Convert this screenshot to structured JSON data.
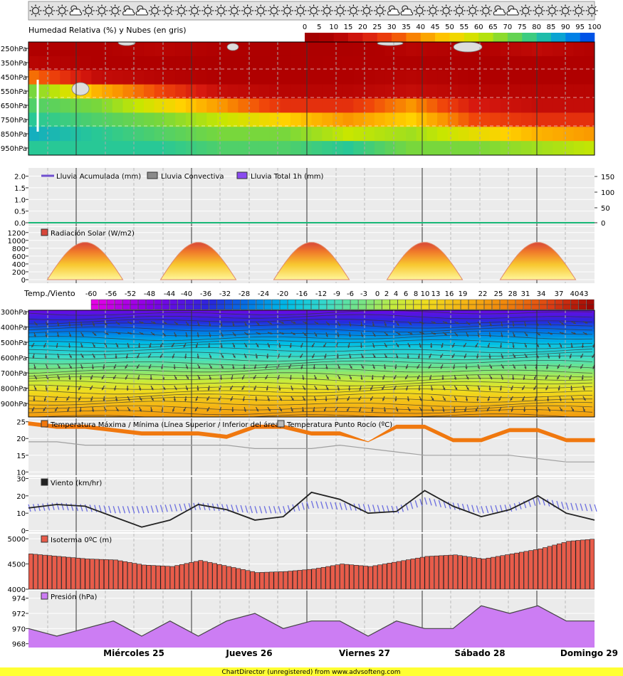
{
  "weather_icons": [
    "sun",
    "sun",
    "sun",
    "cloud-sun",
    "sun",
    "sun",
    "sun",
    "cloud-sun",
    "cloud-sun",
    "sun",
    "sun",
    "sun",
    "sun",
    "sun",
    "sun",
    "sun",
    "sun",
    "sun",
    "sun",
    "sun",
    "sun",
    "sun",
    "sun",
    "sun",
    "sun",
    "sun",
    "sun",
    "cloud-sun",
    "cloud-sun",
    "sun",
    "sun",
    "sun",
    "sun",
    "sun",
    "sun",
    "cloud-sun",
    "cloud-sun",
    "sun",
    "sun",
    "sun",
    "sun",
    "sun",
    "sun"
  ],
  "colors": {
    "axis_bg": "#ebebeb",
    "radiation_fill": "#f3a52a",
    "isotherm_bar": "#e85c4a",
    "pressure_fill": "#cc7df3",
    "wind_line": "#222222",
    "gust_band": "#6b6ee0",
    "dewpoint_line": "#a0a0a0",
    "tmax_band": "#f0780f",
    "rain_line": "#19b878"
  },
  "time_axis": {
    "days": [
      "Miércoles 25",
      "Jueves 26",
      "Viernes 27",
      "Sábado 28",
      "Domingo 29"
    ]
  },
  "footer": "ChartDirector (unregistered) from www.advsofteng.com",
  "chart_data": [
    {
      "id": "humidity",
      "type": "heatmap",
      "title": "Humedad Relativa (%) y Nubes (en gris)",
      "scale_ticks": [
        "0",
        "5",
        "10",
        "15",
        "20",
        "25",
        "30",
        "35",
        "40",
        "45",
        "50",
        "55",
        "60",
        "65",
        "70",
        "75",
        "80",
        "85",
        "90",
        "95",
        "100"
      ],
      "y_ticks": [
        "250hPa",
        "350hPa",
        "450hPa",
        "550hPa",
        "650hPa",
        "750hPa",
        "850hPa",
        "950hPa"
      ],
      "levels_hpa": [
        250,
        350,
        450,
        550,
        650,
        750,
        850,
        950
      ],
      "time_points": [
        "24 12h",
        "25 00h",
        "25 12h",
        "26 00h",
        "26 12h",
        "27 00h",
        "27 12h",
        "28 00h",
        "28 12h",
        "29 00h"
      ],
      "values": [
        [
          10,
          10,
          12,
          10,
          8,
          8,
          12,
          10,
          14,
          10
        ],
        [
          12,
          10,
          10,
          8,
          8,
          10,
          10,
          8,
          10,
          10
        ],
        [
          35,
          15,
          12,
          10,
          10,
          10,
          12,
          10,
          10,
          10
        ],
        [
          70,
          45,
          30,
          15,
          12,
          12,
          15,
          12,
          12,
          12
        ],
        [
          75,
          70,
          55,
          40,
          25,
          25,
          40,
          20,
          15,
          15
        ],
        [
          80,
          75,
          70,
          60,
          50,
          40,
          50,
          30,
          25,
          25
        ],
        [
          85,
          80,
          75,
          70,
          70,
          60,
          65,
          55,
          45,
          40
        ],
        [
          80,
          80,
          80,
          75,
          75,
          80,
          70,
          70,
          65,
          60
        ]
      ]
    },
    {
      "id": "rain",
      "type": "line",
      "legend": [
        "Lluvia Acumulada (mm)",
        "Lluvia Convectiva",
        "Lluvia Total 1h (mm)"
      ],
      "y_ticks": [
        "2.0",
        "1.5",
        "1.0",
        "0.5",
        "0.0"
      ],
      "y2_ticks": [
        "150",
        "100",
        "50",
        "0"
      ],
      "ylim": [
        0,
        2.2
      ],
      "values_mm": [
        0,
        0,
        0,
        0,
        0,
        0,
        0,
        0,
        0,
        0
      ]
    },
    {
      "id": "radiation",
      "type": "area",
      "legend": "Radiación Solar (W/m2)",
      "y_ticks": [
        "1200",
        "1000",
        "800",
        "600",
        "400",
        "200",
        "0"
      ],
      "ylim": [
        0,
        1250
      ],
      "day_peaks": [
        {
          "noon_hour": 12,
          "value": 950
        },
        {
          "noon_hour": 36,
          "value": 950
        },
        {
          "noon_hour": 60,
          "value": 950
        },
        {
          "noon_hour": 84,
          "value": 950
        },
        {
          "noon_hour": 108,
          "value": 950
        }
      ]
    },
    {
      "id": "temp_wind",
      "type": "heatmap",
      "title": "Temp./Viento",
      "scale_ticks": [
        "-60",
        "-56",
        "-52",
        "-48",
        "-44",
        "-40",
        "-36",
        "-32",
        "-28",
        "-24",
        "-20",
        "-16",
        "-12",
        "-9",
        "-6",
        "-3",
        "0",
        "2",
        "4",
        "6",
        "8",
        "10",
        "13",
        "16",
        "19",
        "22",
        "25",
        "28",
        "31",
        "34",
        "37",
        "40",
        "43"
      ],
      "y_ticks": [
        "300hPa",
        "400hPa",
        "500hPa",
        "600hPa",
        "700hPa",
        "800hPa",
        "900hPa"
      ],
      "levels_hpa": [
        300,
        400,
        500,
        600,
        700,
        800,
        900
      ],
      "level_temperatures": [
        -44,
        -30,
        -18,
        -8,
        2,
        12,
        20
      ]
    },
    {
      "id": "temperature",
      "type": "area",
      "legend": [
        "Temperatura Máxima / Mínima (Línea Superior / Inferior del área)",
        "Temperatura Punto Rocío (ºC)"
      ],
      "y_ticks": [
        "25",
        "20",
        "15",
        "10"
      ],
      "ylim": [
        9,
        26
      ],
      "x_hours": [
        0,
        6,
        12,
        18,
        24,
        30,
        36,
        42,
        48,
        54,
        60,
        66,
        72,
        78,
        84,
        90,
        96,
        102,
        108,
        114,
        120
      ],
      "tmax": [
        25,
        24,
        24,
        23,
        22,
        22,
        22,
        21,
        24,
        24,
        22,
        22,
        19,
        24,
        24,
        20,
        20,
        23,
        23,
        20,
        20
      ],
      "tmin": [
        24,
        23,
        23,
        22,
        21,
        21,
        21,
        20,
        23,
        23,
        21,
        21,
        19,
        23,
        23,
        19,
        19,
        22,
        22,
        19,
        19
      ],
      "dewpoint": [
        19,
        19,
        18,
        18,
        18,
        18,
        18,
        18,
        17,
        17,
        17,
        18,
        17,
        16,
        15,
        15,
        15,
        15,
        14,
        13,
        13
      ]
    },
    {
      "id": "wind",
      "type": "line",
      "legend": "Viento (km/hr)",
      "y_ticks": [
        "30",
        "20",
        "10",
        "0"
      ],
      "ylim": [
        -1,
        31
      ],
      "x_hours": [
        0,
        6,
        12,
        18,
        24,
        30,
        36,
        42,
        48,
        54,
        60,
        66,
        72,
        78,
        84,
        90,
        96,
        102,
        108,
        114,
        120
      ],
      "speed": [
        13,
        15,
        14,
        8,
        2,
        6,
        15,
        12,
        6,
        8,
        22,
        18,
        10,
        11,
        23,
        14,
        8,
        12,
        20,
        10,
        6
      ],
      "gust": [
        13,
        14,
        13,
        12,
        12,
        13,
        14,
        13,
        12,
        12,
        15,
        14,
        13,
        12,
        17,
        14,
        12,
        13,
        17,
        14,
        13
      ]
    },
    {
      "id": "isotherm",
      "type": "bar",
      "legend": "Isoterma 0ºC (m)",
      "y_ticks": [
        "5000",
        "4500",
        "4000"
      ],
      "ylim": [
        4000,
        5100
      ],
      "x_hours": [
        0,
        6,
        12,
        18,
        24,
        30,
        36,
        42,
        48,
        54,
        60,
        66,
        72,
        78,
        84,
        90,
        96,
        102,
        108,
        114,
        120
      ],
      "values": [
        4700,
        4650,
        4600,
        4580,
        4480,
        4450,
        4570,
        4450,
        4330,
        4350,
        4400,
        4500,
        4450,
        4550,
        4650,
        4680,
        4600,
        4700,
        4800,
        4950,
        5000
      ]
    },
    {
      "id": "pressure",
      "type": "area",
      "legend": "Presión (hPa)",
      "y_ticks": [
        "974",
        "972",
        "970",
        "968"
      ],
      "ylim": [
        967.5,
        975
      ],
      "x_hours": [
        0,
        6,
        12,
        18,
        24,
        30,
        36,
        42,
        48,
        54,
        60,
        66,
        72,
        78,
        84,
        90,
        96,
        102,
        108,
        114,
        120
      ],
      "values": [
        970,
        969,
        970,
        971,
        969,
        971,
        969,
        971,
        972,
        970,
        971,
        971,
        969,
        971,
        970,
        970,
        973,
        972,
        973,
        971,
        971
      ]
    }
  ]
}
